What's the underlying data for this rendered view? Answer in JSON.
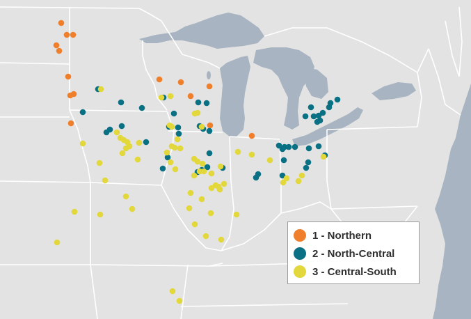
{
  "colors": {
    "land": "#e3e3e3",
    "water": "#a8b4c1",
    "state_border": "#ffffff",
    "northern": "#f07f2b",
    "north_central": "#0a7083",
    "central_south": "#e2d83b"
  },
  "legend": {
    "items": [
      {
        "label": "1 - Northern",
        "color": "#f07f2b"
      },
      {
        "label": "2 - North-Central",
        "color": "#0a7083"
      },
      {
        "label": "3 - Central-South",
        "color": "#e2d83b"
      }
    ]
  },
  "sites": {
    "northern": [
      [
        88,
        33
      ],
      [
        96,
        50
      ],
      [
        105,
        50
      ],
      [
        81,
        65
      ],
      [
        85,
        73
      ],
      [
        98,
        110
      ],
      [
        101,
        137
      ],
      [
        106,
        135
      ],
      [
        229,
        114
      ],
      [
        260,
        118
      ],
      [
        301,
        124
      ],
      [
        274,
        138
      ],
      [
        102,
        177
      ],
      [
        302,
        180
      ],
      [
        362,
        195
      ]
    ],
    "north_central": [
      [
        141,
        128
      ],
      [
        174,
        147
      ],
      [
        204,
        155
      ],
      [
        235,
        140
      ],
      [
        250,
        163
      ],
      [
        285,
        147
      ],
      [
        297,
        148
      ],
      [
        119,
        161
      ],
      [
        153,
        190
      ],
      [
        158,
        186
      ],
      [
        175,
        181
      ],
      [
        210,
        204
      ],
      [
        243,
        182
      ],
      [
        256,
        183
      ],
      [
        257,
        192
      ],
      [
        287,
        181
      ],
      [
        292,
        185
      ],
      [
        301,
        188
      ],
      [
        234,
        242
      ],
      [
        241,
        226
      ],
      [
        284,
        247
      ],
      [
        290,
        244
      ],
      [
        301,
        220
      ],
      [
        298,
        240
      ],
      [
        320,
        241
      ],
      [
        447,
        154
      ],
      [
        451,
        167
      ],
      [
        458,
        166
      ],
      [
        464,
        162
      ],
      [
        456,
        175
      ],
      [
        460,
        173
      ],
      [
        475,
        148
      ],
      [
        485,
        143
      ],
      [
        473,
        154
      ],
      [
        439,
        167
      ],
      [
        401,
        209
      ],
      [
        406,
        214
      ],
      [
        409,
        211
      ],
      [
        415,
        211
      ],
      [
        424,
        211
      ],
      [
        444,
        213
      ],
      [
        458,
        210
      ],
      [
        408,
        230
      ],
      [
        443,
        233
      ],
      [
        440,
        241
      ],
      [
        467,
        223
      ],
      [
        371,
        250
      ],
      [
        368,
        255
      ],
      [
        406,
        252
      ]
    ],
    "central_south": [
      [
        145,
        128
      ],
      [
        232,
        140
      ],
      [
        245,
        138
      ],
      [
        244,
        180
      ],
      [
        247,
        182
      ],
      [
        280,
        163
      ],
      [
        284,
        162
      ],
      [
        290,
        182
      ],
      [
        255,
        200
      ],
      [
        119,
        206
      ],
      [
        168,
        190
      ],
      [
        173,
        198
      ],
      [
        178,
        201
      ],
      [
        183,
        204
      ],
      [
        186,
        210
      ],
      [
        181,
        213
      ],
      [
        176,
        220
      ],
      [
        200,
        205
      ],
      [
        198,
        229
      ],
      [
        240,
        219
      ],
      [
        247,
        210
      ],
      [
        251,
        212
      ],
      [
        259,
        213
      ],
      [
        245,
        233
      ],
      [
        252,
        243
      ],
      [
        279,
        228
      ],
      [
        284,
        232
      ],
      [
        291,
        235
      ],
      [
        287,
        246
      ],
      [
        293,
        246
      ],
      [
        304,
        249
      ],
      [
        317,
        239
      ],
      [
        279,
        252
      ],
      [
        304,
        270
      ],
      [
        310,
        266
      ],
      [
        314,
        268
      ],
      [
        316,
        272
      ],
      [
        322,
        264
      ],
      [
        274,
        277
      ],
      [
        290,
        286
      ],
      [
        272,
        299
      ],
      [
        303,
        306
      ],
      [
        280,
        322
      ],
      [
        296,
        339
      ],
      [
        318,
        344
      ],
      [
        340,
        308
      ],
      [
        342,
        218
      ],
      [
        362,
        222
      ],
      [
        388,
        230
      ],
      [
        465,
        225
      ],
      [
        412,
        256
      ],
      [
        407,
        262
      ],
      [
        429,
        260
      ],
      [
        434,
        252
      ],
      [
        143,
        234
      ],
      [
        151,
        259
      ],
      [
        181,
        282
      ],
      [
        190,
        300
      ],
      [
        107,
        304
      ],
      [
        144,
        308
      ],
      [
        82,
        348
      ],
      [
        248,
        418
      ],
      [
        258,
        432
      ]
    ]
  }
}
